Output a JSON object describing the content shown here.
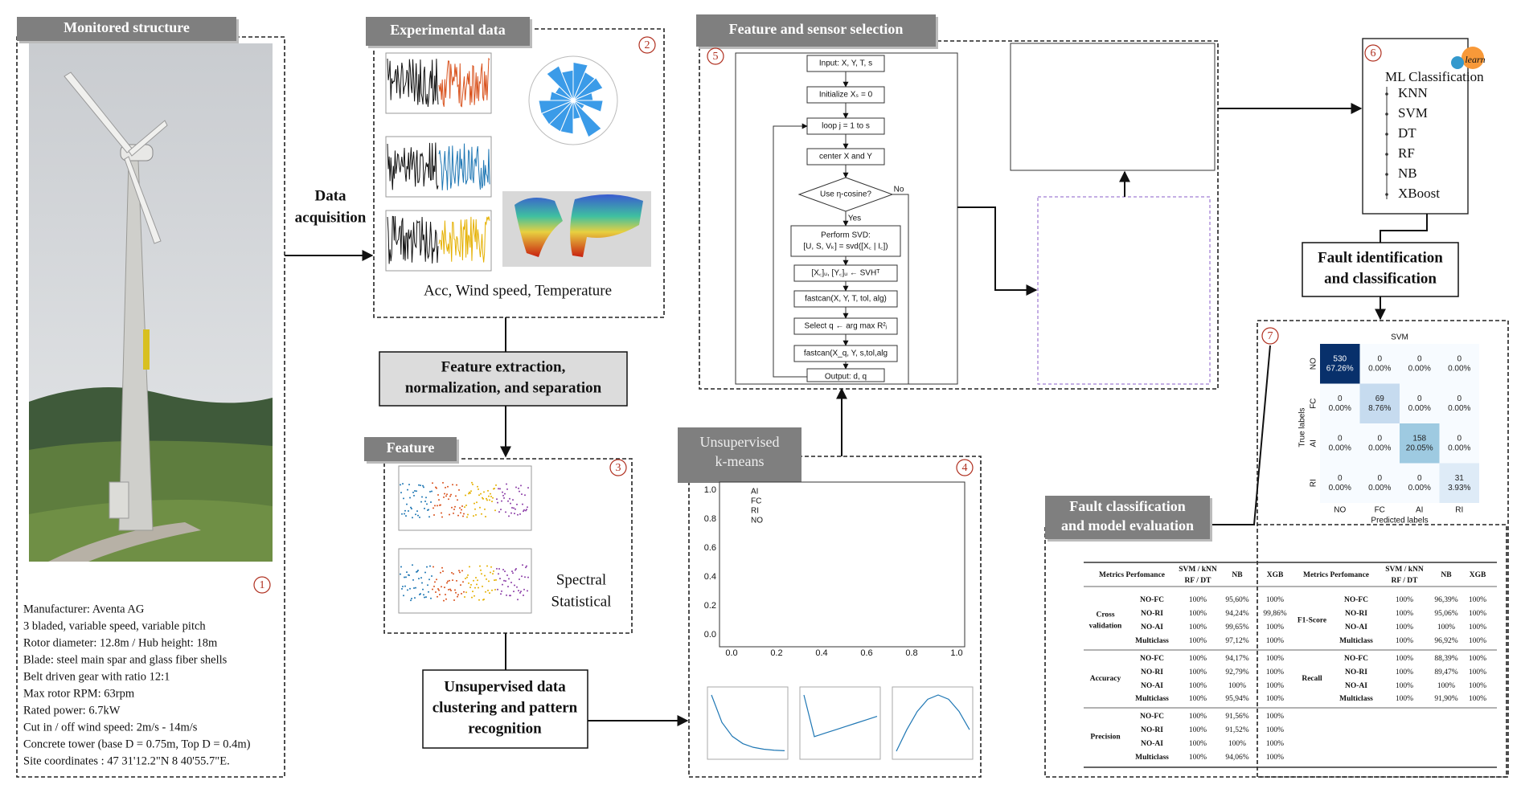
{
  "structure": {
    "title": "Monitored structure",
    "number": "1",
    "specs": [
      "Manufacturer: Aventa AG",
      "3 bladed, variable speed, variable pitch",
      "Rotor diameter: 12.8m / Hub height: 18m",
      "Blade: steel main spar and glass fiber shells",
      "Belt driven gear with ratio 12:1",
      "Max rotor RPM: 63rpm",
      "Rated power: 6.7kW",
      "Cut in / off wind speed: 2m/s  -  14m/s",
      "Concrete tower (base D = 0.75m, Top D = 0.4m)",
      "Site coordinates : 47 31'12.2\"N 8 40'55.7\"E."
    ]
  },
  "experimental": {
    "title": "Experimental data",
    "number": "2",
    "caption": "Acc, Wind speed, Temperature"
  },
  "feature": {
    "title": "Feature",
    "number": "3",
    "labels": [
      "Spectral",
      "Statistical"
    ]
  },
  "kmeans": {
    "title": [
      "Unsupervised",
      "k-means"
    ],
    "number": "4",
    "legend": [
      "AI",
      "FC",
      "RI",
      "NO"
    ],
    "xticks": [
      "0.0",
      "0.2",
      "0.4",
      "0.6",
      "0.8",
      "1.0"
    ],
    "yticks": [
      "0.0",
      "0.2",
      "0.4",
      "0.6",
      "0.8",
      "1.0"
    ]
  },
  "selection": {
    "title": "Feature and sensor selection",
    "number": "5",
    "no": "No",
    "yes": "Yes",
    "steps": [
      [
        "Input: X, Y, T, s"
      ],
      [
        "Initialize Xₛ = 0"
      ],
      [
        "loop j = 1 to s"
      ],
      [
        "center X and Y"
      ],
      [
        "Use η-cosine?"
      ],
      [
        "Perform SVD:",
        "[U, S, Vₖ] = svd([X꜀ | I꜀])"
      ],
      [
        "[X꜀]ᵤ, [Y꜀]ᵤ ← SVHᵀ"
      ],
      [
        "fastcan(X, Y, T, tol, alg)"
      ],
      [
        "Select q ← arg max R²ⱼ"
      ],
      [
        "fastcan(X_q, Y, s,tol,alg"
      ],
      [
        "Output: d, q"
      ]
    ]
  },
  "ml": {
    "number": "6",
    "logo": "learn",
    "title": "ML Classification",
    "models": [
      "KNN",
      "SVM",
      "DT",
      "RF",
      "NB",
      "XBoost"
    ]
  },
  "confusion": {
    "number": "7",
    "title": "SVM",
    "x_label": "Predicted labels",
    "y_label": "True labels",
    "classes": [
      "NO",
      "FC",
      "AI",
      "RI"
    ],
    "cells": [
      [
        {
          "count": 530,
          "pct": "67.26%"
        },
        {
          "count": 0,
          "pct": "0.00%"
        },
        {
          "count": 0,
          "pct": "0.00%"
        },
        {
          "count": 0,
          "pct": "0.00%"
        }
      ],
      [
        {
          "count": 0,
          "pct": "0.00%"
        },
        {
          "count": 69,
          "pct": "8.76%"
        },
        {
          "count": 0,
          "pct": "0.00%"
        },
        {
          "count": 0,
          "pct": "0.00%"
        }
      ],
      [
        {
          "count": 0,
          "pct": "0.00%"
        },
        {
          "count": 0,
          "pct": "0.00%"
        },
        {
          "count": 158,
          "pct": "20.05%"
        },
        {
          "count": 0,
          "pct": "0.00%"
        }
      ],
      [
        {
          "count": 0,
          "pct": "0.00%"
        },
        {
          "count": 0,
          "pct": "0.00%"
        },
        {
          "count": 0,
          "pct": "0.00%"
        },
        {
          "count": 31,
          "pct": "3.93%"
        }
      ]
    ]
  },
  "evaluation": {
    "title": [
      "Fault classification",
      "and model evaluation"
    ],
    "header": [
      "Metrics Perfomance",
      [
        "SVM / kNN",
        "RF / DT"
      ],
      "NB",
      "XGB"
    ],
    "left": [
      {
        "group": [
          "Cross",
          "validation"
        ],
        "rows": [
          [
            "NO-FC",
            "100%",
            "95,60%",
            "100%"
          ],
          [
            "NO-RI",
            "100%",
            "94,24%",
            "99,86%"
          ],
          [
            "NO-AI",
            "100%",
            "99,65%",
            "100%"
          ],
          [
            "Multiclass",
            "100%",
            "97,12%",
            "100%"
          ]
        ]
      },
      {
        "group": [
          "Accuracy"
        ],
        "rows": [
          [
            "NO-FC",
            "100%",
            "94,17%",
            "100%"
          ],
          [
            "NO-RI",
            "100%",
            "92,79%",
            "100%"
          ],
          [
            "NO-AI",
            "100%",
            "100%",
            "100%"
          ],
          [
            "Multiclass",
            "100%",
            "95,94%",
            "100%"
          ]
        ]
      },
      {
        "group": [
          "Precision"
        ],
        "rows": [
          [
            "NO-FC",
            "100%",
            "91,56%",
            "100%"
          ],
          [
            "NO-RI",
            "100%",
            "91,52%",
            "100%"
          ],
          [
            "NO-AI",
            "100%",
            "100%",
            "100%"
          ],
          [
            "Multiclass",
            "100%",
            "94,06%",
            "100%"
          ]
        ]
      }
    ],
    "right": [
      {
        "group": [
          "F1-Score"
        ],
        "rows": [
          [
            "NO-FC",
            "100%",
            "96,39%",
            "100%"
          ],
          [
            "NO-RI",
            "100%",
            "95,06%",
            "100%"
          ],
          [
            "NO-AI",
            "100%",
            "100%",
            "100%"
          ],
          [
            "Multiclass",
            "100%",
            "96,92%",
            "100%"
          ]
        ]
      },
      {
        "group": [
          "Recall"
        ],
        "rows": [
          [
            "NO-FC",
            "100%",
            "88,39%",
            "100%"
          ],
          [
            "NO-RI",
            "100%",
            "89,47%",
            "100%"
          ],
          [
            "NO-AI",
            "100%",
            "100%",
            "100%"
          ],
          [
            "Multiclass",
            "100%",
            "91,90%",
            "100%"
          ]
        ]
      }
    ]
  },
  "boxes": {
    "acquisition": [
      "Data",
      "acquisition"
    ],
    "extraction": [
      "Feature extraction,",
      "normalization, and separation"
    ],
    "clustering": [
      "Unsupervised data",
      "clustering and pattern",
      "recognition"
    ],
    "identification": [
      "Fault identification",
      "and classification"
    ]
  }
}
